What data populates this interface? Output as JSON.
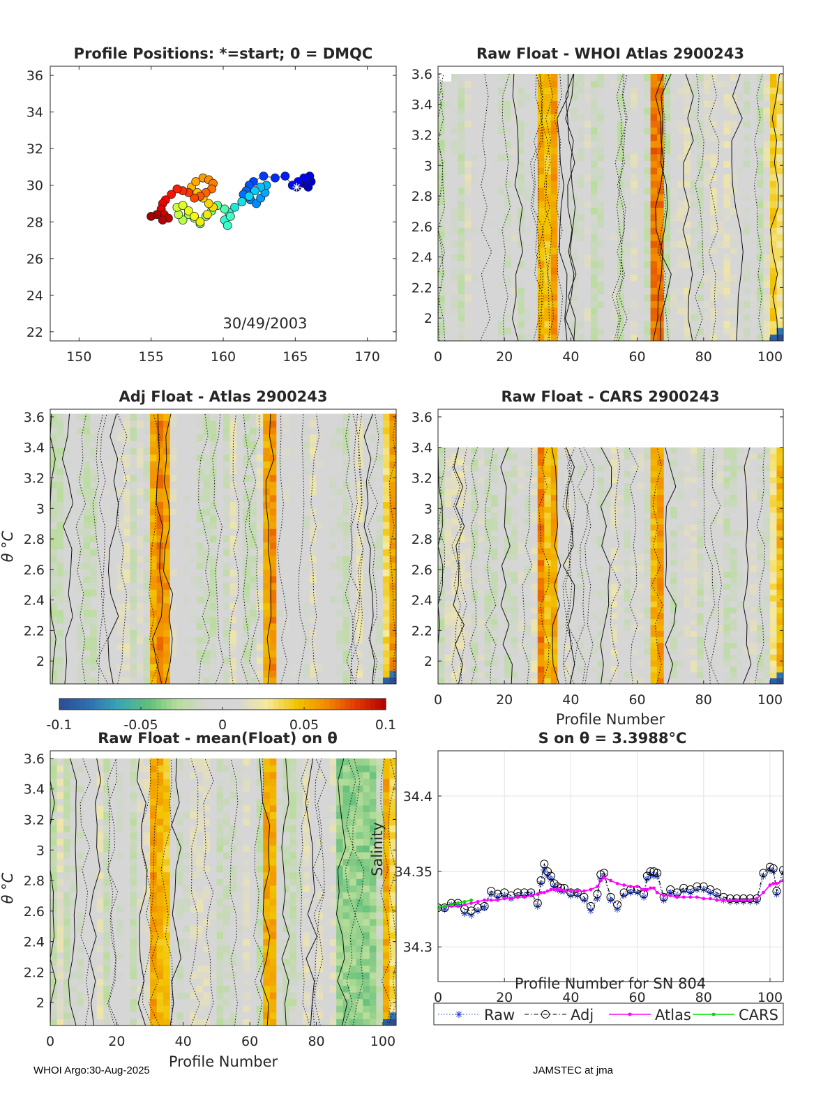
{
  "float_id": "2900243",
  "footer": {
    "left": "WHOI Argo:30-Aug-2025",
    "right": "JAMSTEC at jma"
  },
  "colorbar": {
    "ticks": [
      "-0.1",
      "-0.05",
      "0",
      "0.05",
      "0.1"
    ],
    "range": [
      -0.1,
      0.1
    ],
    "stops": [
      "#2b4d91",
      "#2f6fb2",
      "#39a5b5",
      "#5fbf7a",
      "#b8dd9a",
      "#d6d6d6",
      "#d6d6d6",
      "#f5ea9c",
      "#f2c400",
      "#f28a00",
      "#e03a00",
      "#b30000"
    ]
  },
  "panels": {
    "positions": {
      "title": "Profile Positions: *=start; 0 = DMQC",
      "date_label": "30/49/2003",
      "yticks": [
        "22",
        "24",
        "26",
        "28",
        "30",
        "32",
        "34",
        "36"
      ],
      "xticks": [
        "150",
        "155",
        "160",
        "165",
        "170"
      ]
    },
    "raw_atlas": {
      "title": "Raw Float - WHOI Atlas  2900243",
      "yticks": [
        "2",
        "2.2",
        "2.4",
        "2.6",
        "2.8",
        "3",
        "3.2",
        "3.4",
        "3.6"
      ],
      "xticks": [
        "0",
        "20",
        "40",
        "60",
        "80",
        "100"
      ]
    },
    "adj_atlas": {
      "title": "Adj Float - Atlas  2900243",
      "ylabel": "θ °C",
      "yticks": [
        "2",
        "2.2",
        "2.4",
        "2.6",
        "2.8",
        "3",
        "3.2",
        "3.4",
        "3.6"
      ]
    },
    "raw_cars": {
      "title": "Raw Float - CARS  2900243",
      "xlabel": "Profile Number",
      "yticks": [
        "2",
        "2.2",
        "2.4",
        "2.6",
        "2.8",
        "3",
        "3.2",
        "3.4",
        "3.6"
      ],
      "xticks": [
        "0",
        "20",
        "40",
        "60",
        "80",
        "100"
      ]
    },
    "raw_mean": {
      "title": "Raw Float - mean(Float) on θ",
      "ylabel": "θ °C",
      "xlabel": "Profile Number",
      "yticks": [
        "2",
        "2.2",
        "2.4",
        "2.6",
        "2.8",
        "3",
        "3.2",
        "3.4",
        "3.6"
      ],
      "xticks": [
        "0",
        "20",
        "40",
        "60",
        "80",
        "100"
      ]
    },
    "salinity": {
      "title": "S on θ = 3.3988°C",
      "ylabel": "Salinity",
      "xlabel": "Profile Number for SN 804",
      "yticks": [
        "34.3",
        "34.35",
        "34.4"
      ],
      "xticks": [
        "0",
        "20",
        "40",
        "60",
        "80",
        "100"
      ],
      "legend": [
        "Raw",
        "Adj",
        "Atlas",
        "CARS"
      ]
    }
  },
  "chart_data": [
    {
      "type": "scatter",
      "title": "Profile Positions: *=start; 0 = DMQC",
      "xlabel": "",
      "ylabel": "",
      "xlim": [
        148,
        172
      ],
      "ylim": [
        21.5,
        36.5
      ],
      "annotation": "30/49/2003",
      "start_marker": [
        165.1,
        29.9
      ],
      "series": [
        {
          "name": "positions",
          "lon": [
            165.1,
            165.4,
            165.6,
            165.9,
            166.1,
            166.0,
            165.6,
            165.2,
            164.8,
            164.3,
            163.6,
            162.8,
            162.1,
            161.8,
            161.6,
            161.4,
            161.9,
            162.3,
            162.6,
            162.9,
            163.0,
            162.6,
            162.2,
            161.8,
            161.3,
            160.8,
            160.4,
            160.1,
            160.3,
            160.5,
            160.1,
            159.6,
            159.2,
            158.8,
            158.4,
            158.0,
            157.6,
            157.2,
            156.9,
            156.8,
            157.2,
            157.6,
            158.0,
            158.4,
            158.9,
            159.3,
            159.0,
            158.6,
            158.2,
            157.8,
            158.1,
            158.6,
            159.0,
            159.3,
            159.2,
            158.8,
            158.4,
            158.0,
            157.6,
            157.2,
            156.8,
            156.4,
            156.0,
            155.8,
            155.7,
            155.9,
            156.2,
            155.8,
            155.4,
            155.0
          ],
          "lat": [
            29.9,
            30.2,
            30.1,
            29.9,
            30.2,
            30.5,
            30.4,
            30.2,
            30.0,
            30.5,
            30.4,
            30.5,
            30.2,
            30.0,
            29.7,
            29.5,
            29.2,
            29.0,
            29.3,
            29.6,
            30.0,
            29.9,
            29.7,
            29.4,
            29.1,
            28.8,
            28.5,
            28.1,
            27.8,
            28.3,
            28.7,
            28.9,
            28.6,
            28.3,
            27.9,
            28.2,
            28.4,
            28.1,
            28.4,
            28.8,
            28.9,
            28.6,
            28.3,
            28.0,
            28.4,
            28.8,
            29.0,
            29.3,
            29.6,
            29.9,
            30.2,
            30.4,
            30.3,
            30.1,
            29.8,
            29.6,
            29.4,
            29.3,
            29.6,
            29.7,
            29.8,
            29.5,
            29.2,
            29.0,
            28.7,
            28.4,
            28.2,
            28.1,
            28.4,
            28.3
          ]
        }
      ]
    },
    {
      "type": "line",
      "title": "S on θ = 3.3988°C",
      "xlabel": "Profile Number for SN 804",
      "ylabel": "Salinity",
      "xlim": [
        0,
        104
      ],
      "ylim": [
        34.277,
        34.43
      ],
      "x": [
        0,
        2,
        4,
        6,
        8,
        10,
        12,
        14,
        16,
        18,
        20,
        22,
        24,
        26,
        28,
        30,
        31,
        32,
        33,
        34,
        35,
        36,
        37,
        38,
        40,
        42,
        44,
        46,
        48,
        49,
        50,
        52,
        54,
        56,
        58,
        60,
        62,
        63,
        64,
        65,
        66,
        68,
        70,
        72,
        74,
        76,
        78,
        80,
        82,
        84,
        86,
        88,
        90,
        92,
        94,
        96,
        98,
        100,
        101,
        102,
        104
      ],
      "series": [
        {
          "name": "Raw",
          "values": [
            34.326,
            34.325,
            34.328,
            34.328,
            34.322,
            34.321,
            34.324,
            34.326,
            34.335,
            34.333,
            34.334,
            34.332,
            34.334,
            34.334,
            34.335,
            34.327,
            34.342,
            34.351,
            34.347,
            34.345,
            34.34,
            34.338,
            34.337,
            34.337,
            34.334,
            34.334,
            34.331,
            34.324,
            34.332,
            34.345,
            34.347,
            34.331,
            34.325,
            34.334,
            34.336,
            34.336,
            34.333,
            34.345,
            34.348,
            34.347,
            34.347,
            34.331,
            34.336,
            34.334,
            34.337,
            34.336,
            34.338,
            34.338,
            34.336,
            34.334,
            34.331,
            34.33,
            34.33,
            34.33,
            34.33,
            34.33,
            34.347,
            34.351,
            34.35,
            34.335,
            34.349
          ]
        },
        {
          "name": "Adj",
          "values": [
            34.326,
            34.326,
            34.329,
            34.329,
            34.325,
            34.324,
            34.326,
            34.327,
            34.337,
            34.335,
            34.336,
            34.334,
            34.336,
            34.336,
            34.336,
            34.329,
            34.344,
            34.355,
            34.35,
            34.347,
            34.342,
            34.34,
            34.339,
            34.339,
            34.336,
            34.336,
            34.333,
            34.327,
            34.335,
            34.348,
            34.349,
            34.333,
            34.328,
            34.336,
            34.338,
            34.338,
            34.335,
            34.347,
            34.35,
            34.35,
            34.349,
            34.333,
            34.338,
            34.336,
            34.339,
            34.338,
            34.34,
            34.34,
            34.338,
            34.336,
            34.333,
            34.332,
            34.332,
            34.332,
            34.332,
            34.332,
            34.349,
            34.353,
            34.352,
            34.337,
            34.351
          ]
        },
        {
          "name": "Atlas",
          "values": [
            34.326,
            34.327,
            34.327,
            34.327,
            34.328,
            34.329,
            34.33,
            34.331,
            34.331,
            34.331,
            34.332,
            34.332,
            34.333,
            34.333,
            34.334,
            34.335,
            34.336,
            34.336,
            34.337,
            34.338,
            34.338,
            34.338,
            34.338,
            34.337,
            34.337,
            34.337,
            34.337,
            34.338,
            34.34,
            34.344,
            34.346,
            34.344,
            34.342,
            34.341,
            34.34,
            34.34,
            34.338,
            34.338,
            34.339,
            34.339,
            34.336,
            34.334,
            34.334,
            34.333,
            34.333,
            34.333,
            34.333,
            34.332,
            34.332,
            34.331,
            34.331,
            34.331,
            34.331,
            34.331,
            34.331,
            34.332,
            34.336,
            34.341,
            34.342,
            34.342,
            34.344
          ]
        },
        {
          "name": "CARS",
          "values": [
            34.326,
            34.327,
            34.328,
            34.329,
            34.33,
            34.331,
            null,
            null,
            null,
            null,
            null,
            null,
            null,
            null,
            null,
            null,
            null,
            null,
            null,
            null,
            null,
            null,
            null,
            null,
            null,
            null,
            null,
            null,
            null,
            null,
            null,
            null,
            null,
            null,
            null,
            null,
            null,
            null,
            null,
            null,
            null,
            null,
            null,
            null,
            null,
            null,
            null,
            null,
            null,
            null,
            null,
            null,
            null,
            null,
            null,
            null,
            null,
            null,
            null,
            null,
            null
          ]
        }
      ]
    }
  ]
}
